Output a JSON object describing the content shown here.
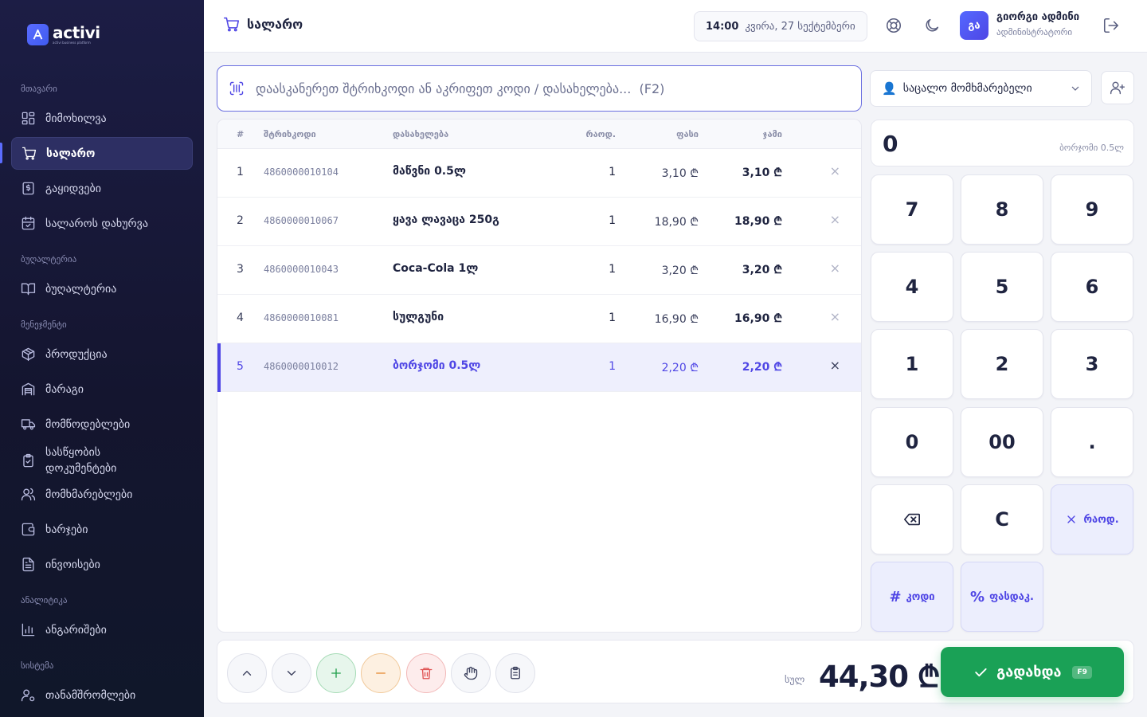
{
  "brand": {
    "name": "activi",
    "tagline": "activi business platform"
  },
  "sidebar": {
    "sections": {
      "main": "მთავარი",
      "accounting": "ბუღალტერია",
      "management": "მენეჯმენტი",
      "analytics": "ანალიტიკა",
      "system": "სისტემა"
    },
    "items": [
      {
        "label": "მიმოხილვა"
      },
      {
        "label": "სალარო",
        "active": true
      },
      {
        "label": "გაყიდვები"
      },
      {
        "label": "სალაროს დახურვა"
      },
      {
        "label": "ბუღალტერია"
      },
      {
        "label": "პროდუქცია"
      },
      {
        "label": "მარაგი"
      },
      {
        "label": "მომწოდებლები"
      },
      {
        "label": "სასწყობის დოკუმენტები"
      },
      {
        "label": "მომხმარებლები"
      },
      {
        "label": "ხარჯები"
      },
      {
        "label": "ინვოისები"
      },
      {
        "label": "ანგარიშები"
      },
      {
        "label": "თანამშრომლები"
      }
    ]
  },
  "header": {
    "title": "სალარო",
    "time": "14:00",
    "date": "კვირა, 27 სექტემბერი",
    "user_initials": "გა",
    "user_name": "გიორგი ადმინი",
    "user_role": "ადმინისტრატორი"
  },
  "search": {
    "placeholder": "დაასკანერეთ შტრიხკოდი ან აკრიფეთ კოდი / დასახელება...  (F2)"
  },
  "customer": {
    "selected": "საცალო მომხმარებელი"
  },
  "table": {
    "headers": [
      "#",
      "შტრიხკოდი",
      "დასახელება",
      "რაოდ.",
      "ფასი",
      "ჯამი"
    ],
    "rows": [
      {
        "n": "1",
        "barcode": "4860000010104",
        "name": "მაწვნი 0.5ლ",
        "qty": "1",
        "price": "3,10 ₾",
        "total": "3,10 ₾",
        "remove": "×"
      },
      {
        "n": "2",
        "barcode": "4860000010067",
        "name": "ყავა ლავაცა 250გ",
        "qty": "1",
        "price": "18,90 ₾",
        "total": "18,90 ₾",
        "remove": "×"
      },
      {
        "n": "3",
        "barcode": "4860000010043",
        "name": "Coca-Cola 1ლ",
        "qty": "1",
        "price": "3,20 ₾",
        "total": "3,20 ₾",
        "remove": "×"
      },
      {
        "n": "4",
        "barcode": "4860000010081",
        "name": "სულგუნი",
        "qty": "1",
        "price": "16,90 ₾",
        "total": "16,90 ₾",
        "remove": "×"
      },
      {
        "n": "5",
        "barcode": "4860000010012",
        "name": "ბორჯომი 0.5ლ",
        "qty": "1",
        "price": "2,20 ₾",
        "total": "2,20 ₾",
        "remove": "×",
        "selected": true
      }
    ]
  },
  "keypad": {
    "display": "0",
    "display_hint": "ბორჯომი 0.5ლ",
    "keys": [
      "7",
      "8",
      "9",
      "4",
      "5",
      "6",
      "1",
      "2",
      "3",
      "0",
      "00",
      "."
    ],
    "clear": "C",
    "qty_label": "რაოდ.",
    "code_label": "კოდი",
    "discount_label": "ფასდაკ.",
    "code_symbol": "#",
    "discount_symbol": "%"
  },
  "footer": {
    "total_label": "სულ",
    "total": "44,30 ₾",
    "pay_label": "გადახდა",
    "pay_shortcut": "F9"
  }
}
